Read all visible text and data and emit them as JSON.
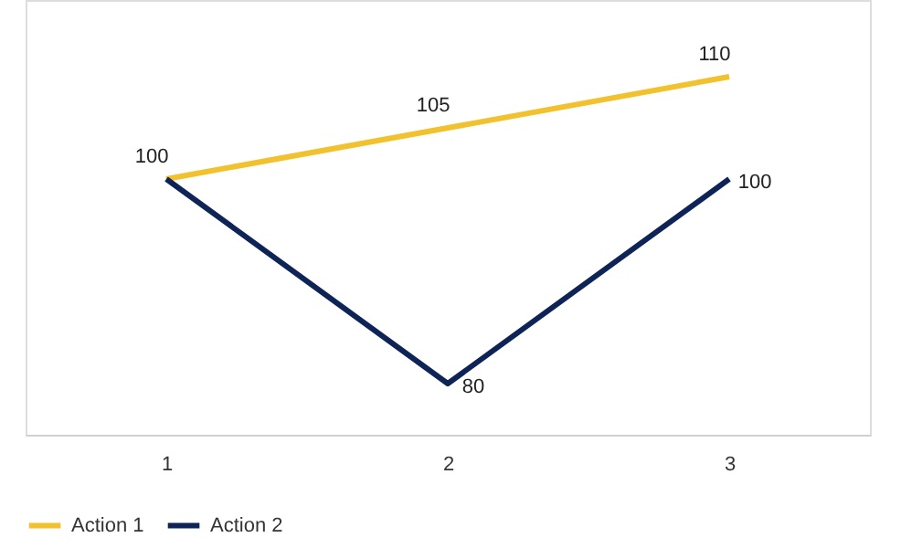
{
  "chart_data": {
    "type": "line",
    "categories": [
      "1",
      "2",
      "3"
    ],
    "series": [
      {
        "name": "Action 1",
        "color": "#f2c12e",
        "values": [
          100,
          105,
          110
        ],
        "value_labels": [
          "100",
          "105",
          "110"
        ]
      },
      {
        "name": "Action 2",
        "color": "#0e2457",
        "values": [
          100,
          80,
          100
        ],
        "value_labels": [
          null,
          "80",
          "100"
        ]
      }
    ],
    "ylim": [
      75,
      117.5
    ],
    "tick_labels": "x",
    "legend": "bottom",
    "grid": false
  }
}
